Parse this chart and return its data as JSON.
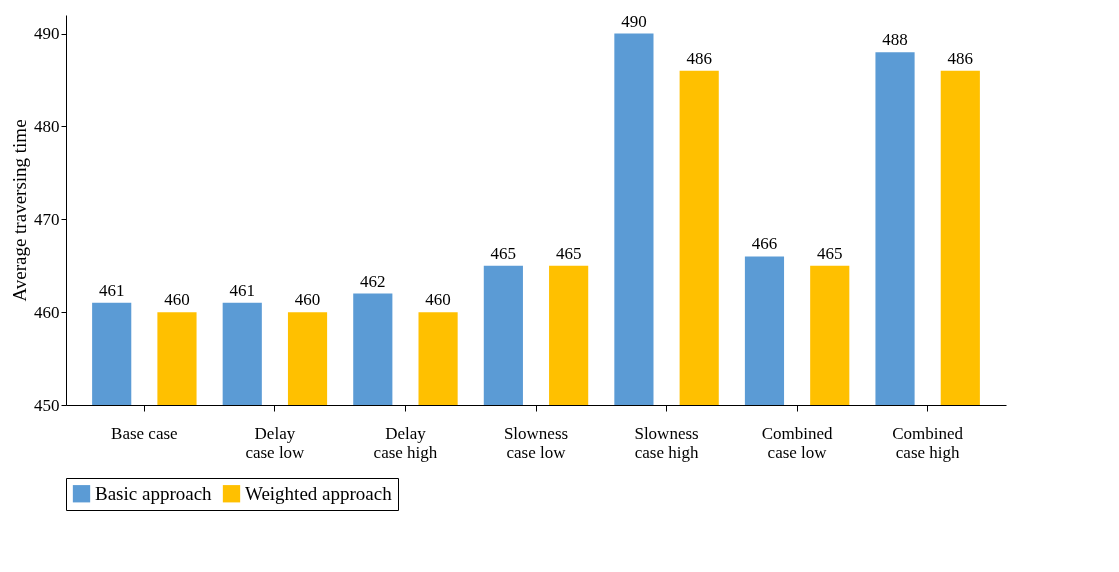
{
  "chart_data": {
    "type": "bar",
    "ylabel": "Average traversing time",
    "categories": [
      "Base case",
      "Delay case low",
      "Delay case high",
      "Slowness case low",
      "Slowness case high",
      "Combined case low",
      "Combined case high"
    ],
    "series": [
      {
        "name": "Basic approach",
        "color": "#5b9bd5",
        "values": [
          461,
          461,
          462,
          465,
          490,
          466,
          488
        ]
      },
      {
        "name": "Weighted approach",
        "color": "#ffc000",
        "values": [
          460,
          460,
          460,
          465,
          486,
          465,
          486
        ]
      }
    ],
    "ylim": [
      450,
      492
    ],
    "yticks": [
      450,
      460,
      470,
      480,
      490
    ],
    "grid": false,
    "legend": "bottom",
    "data_labels": true
  }
}
